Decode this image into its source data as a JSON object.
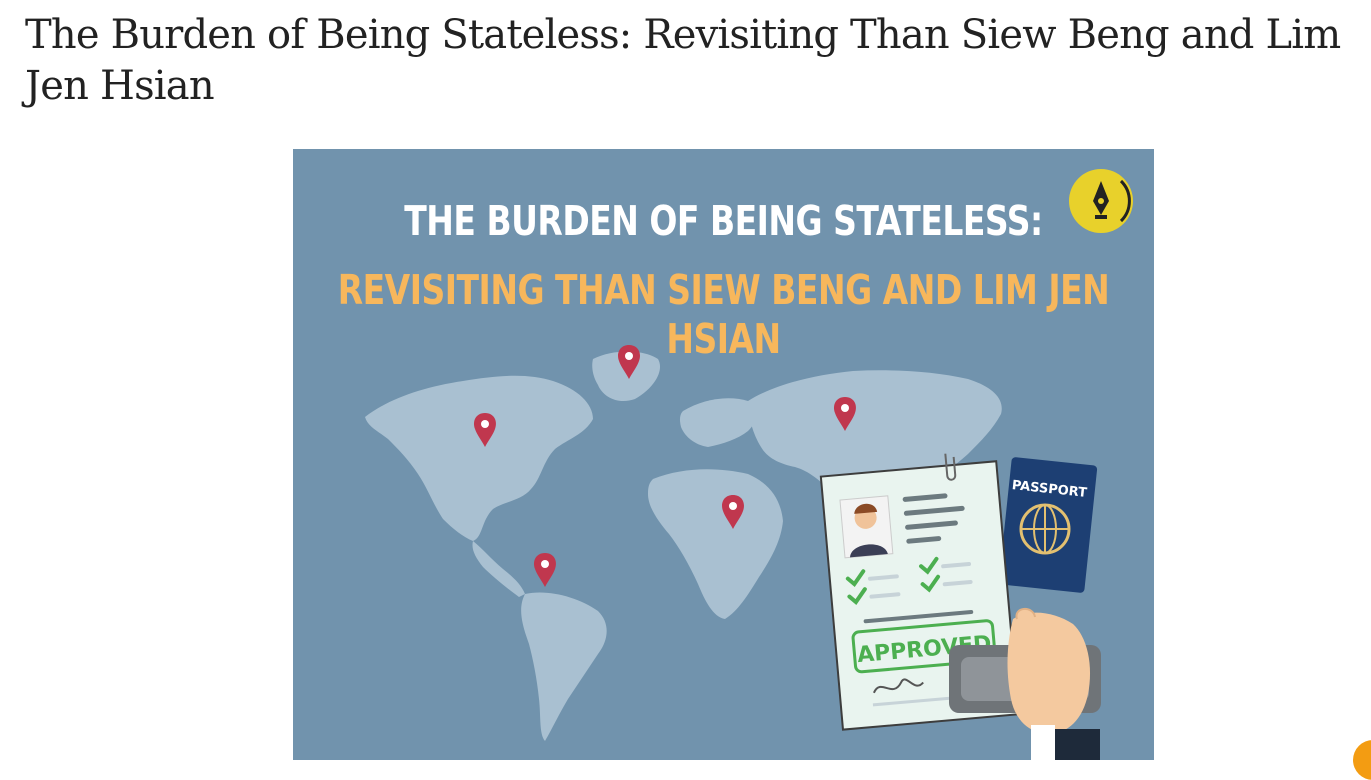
{
  "article": {
    "title": "The Burden of Being Stateless: Revisiting Than Siew Beng and Lim Jen Hsian"
  },
  "hero": {
    "headline_line1": "THE BURDEN OF BEING STATELESS:",
    "headline_line2": "REVISITING THAN SIEW BENG AND LIM JEN HSIAN",
    "passport_label": "PASSPORT",
    "stamp_label": "APPROVED",
    "colors": {
      "background": "#7193ad",
      "land": "#a9c0d1",
      "headline_white": "#ffffff",
      "headline_orange": "#f7b75c",
      "pin": "#c0374e",
      "passport": "#1d3f73",
      "logo": "#e8d12b",
      "approved_green": "#4caf50"
    },
    "icons": [
      "pen-nib-logo-icon",
      "map-pin-icon",
      "passport-icon",
      "check-icon"
    ]
  },
  "scroll_button": {
    "color": "#f39c12"
  }
}
